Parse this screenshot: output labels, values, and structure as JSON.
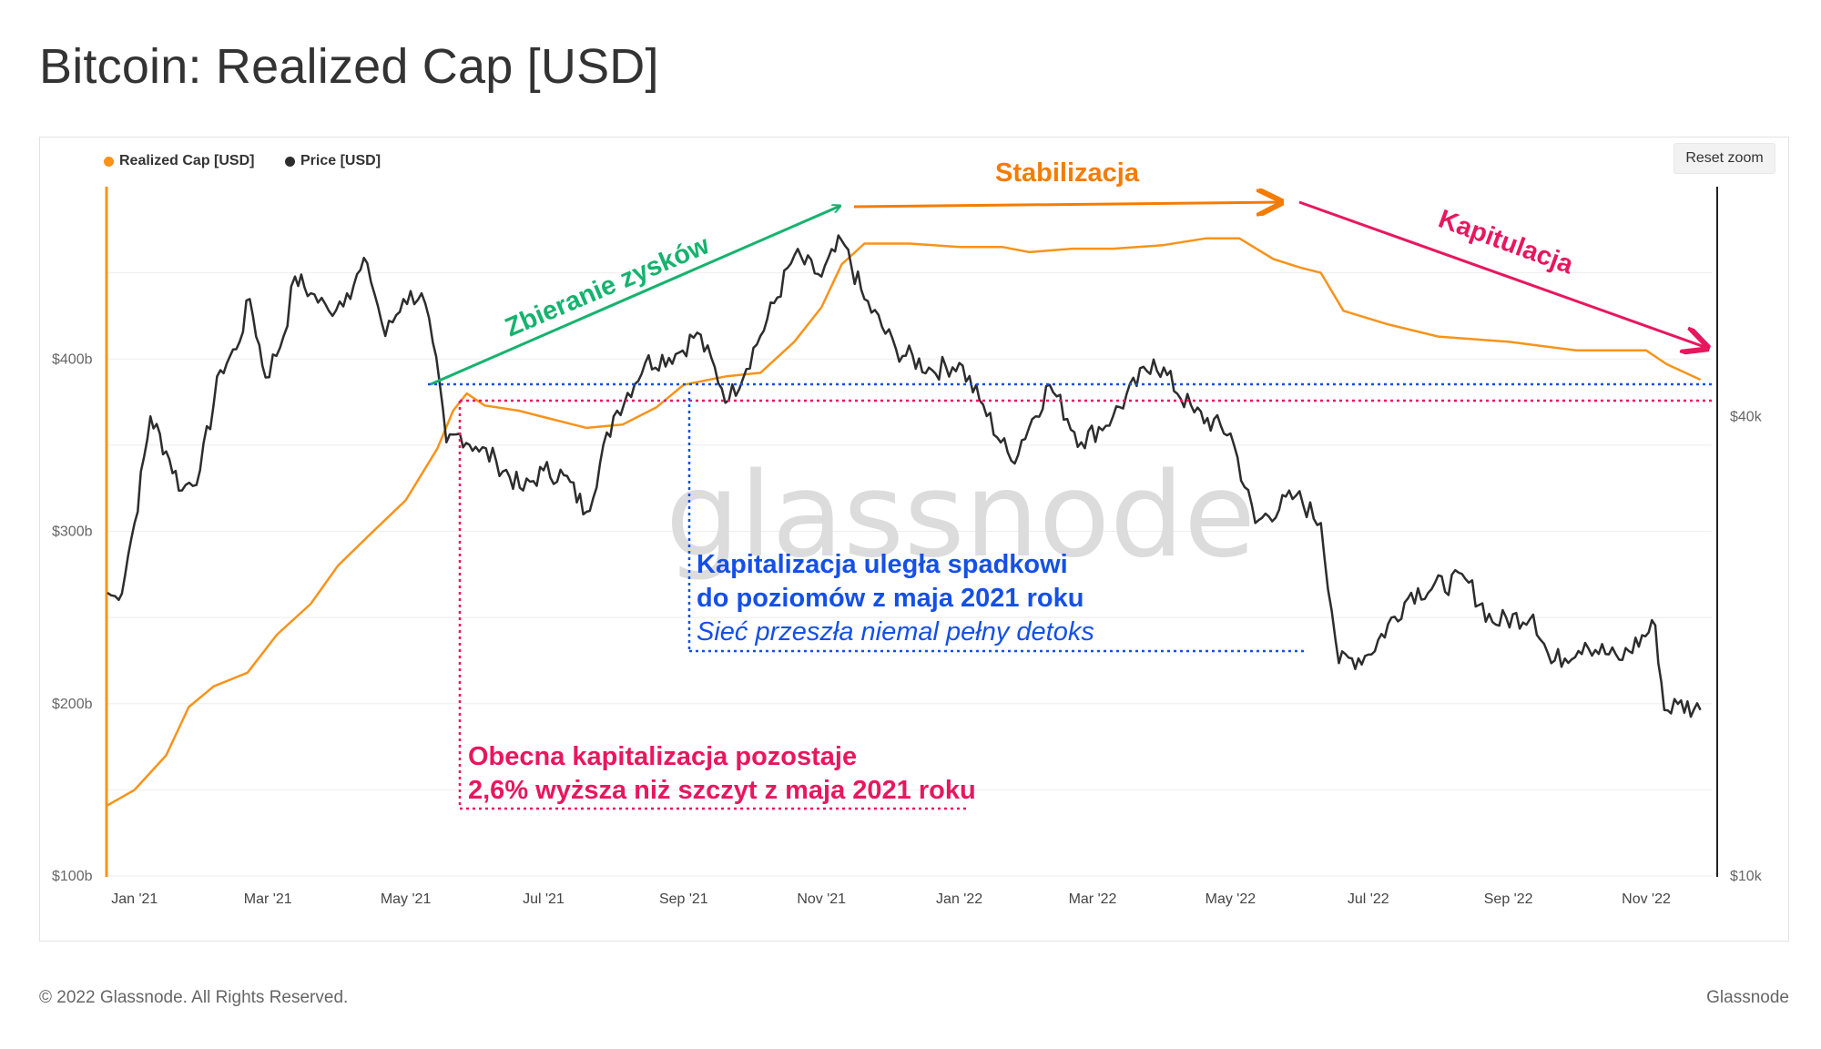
{
  "title": "Bitcoin: Realized Cap [USD]",
  "reset_zoom_label": "Reset zoom",
  "footer": {
    "copyright": "© 2022 Glassnode. All Rights Reserved.",
    "brand": "Glassnode"
  },
  "watermark": "glassnode",
  "colors": {
    "realized_cap": "#f7931a",
    "price": "#2d2d2d",
    "green": "#15b36e",
    "orange": "#f57c00",
    "pink": "#e8175d",
    "blue": "#1550e6"
  },
  "annotations": {
    "profit_taking": "Zbieranie zysków",
    "stabilization": "Stabilizacja",
    "capitulation": "Kapitulacja",
    "blue_line1": "Kapitalizacja uległa spadkowi",
    "blue_line2": "do poziomów z maja 2021 roku",
    "blue_line3": "Sieć przeszła niemal pełny detoks",
    "pink_line1": "Obecna kapitalizacja pozostaje",
    "pink_line2": "2,6% wyższa niż szczyt z maja 2021 roku"
  },
  "chart_data": {
    "type": "line",
    "legend": [
      "Realized Cap [USD]",
      "Price [USD]"
    ],
    "legend_position": "top-left",
    "x_ticks": [
      "Jan '21",
      "Mar '21",
      "May '21",
      "Jul '21",
      "Sep '21",
      "Nov '21",
      "Jan '22",
      "Mar '22",
      "May '22",
      "Jul '22",
      "Sep '22",
      "Nov '22"
    ],
    "y_left": {
      "ticks": [
        "$100b",
        "$200b",
        "$300b",
        "$400b"
      ],
      "range": [
        100,
        500
      ],
      "unit": "billion USD"
    },
    "y_right": {
      "ticks": [
        "$10k",
        "$40k"
      ],
      "scale": "log",
      "range": [
        10000,
        80000
      ]
    },
    "x_range": [
      "2020-12-20",
      "2022-11-30"
    ],
    "series": [
      {
        "name": "Realized Cap [USD]",
        "axis": "left",
        "points": [
          [
            "2020-12-20",
            141
          ],
          [
            "2021-01-01",
            150
          ],
          [
            "2021-01-15",
            170
          ],
          [
            "2021-01-25",
            198
          ],
          [
            "2021-02-05",
            210
          ],
          [
            "2021-02-20",
            218
          ],
          [
            "2021-03-05",
            240
          ],
          [
            "2021-03-20",
            258
          ],
          [
            "2021-04-01",
            280
          ],
          [
            "2021-04-15",
            298
          ],
          [
            "2021-05-01",
            318
          ],
          [
            "2021-05-15",
            348
          ],
          [
            "2021-05-22",
            370
          ],
          [
            "2021-05-28",
            380
          ],
          [
            "2021-06-05",
            373
          ],
          [
            "2021-06-20",
            370
          ],
          [
            "2021-07-05",
            365
          ],
          [
            "2021-07-20",
            360
          ],
          [
            "2021-08-05",
            362
          ],
          [
            "2021-08-20",
            372
          ],
          [
            "2021-09-01",
            385
          ],
          [
            "2021-09-20",
            390
          ],
          [
            "2021-10-05",
            392
          ],
          [
            "2021-10-20",
            410
          ],
          [
            "2021-11-01",
            430
          ],
          [
            "2021-11-10",
            455
          ],
          [
            "2021-11-20",
            467
          ],
          [
            "2021-12-10",
            467
          ],
          [
            "2022-01-01",
            465
          ],
          [
            "2022-01-20",
            465
          ],
          [
            "2022-02-01",
            462
          ],
          [
            "2022-02-20",
            464
          ],
          [
            "2022-03-10",
            464
          ],
          [
            "2022-04-01",
            466
          ],
          [
            "2022-04-20",
            470
          ],
          [
            "2022-05-05",
            470
          ],
          [
            "2022-05-20",
            458
          ],
          [
            "2022-06-01",
            453
          ],
          [
            "2022-06-10",
            450
          ],
          [
            "2022-06-20",
            428
          ],
          [
            "2022-07-10",
            420
          ],
          [
            "2022-08-01",
            413
          ],
          [
            "2022-09-01",
            410
          ],
          [
            "2022-10-01",
            405
          ],
          [
            "2022-11-01",
            405
          ],
          [
            "2022-11-10",
            397
          ],
          [
            "2022-11-25",
            388
          ]
        ]
      },
      {
        "name": "Price [USD]",
        "axis": "right",
        "points": [
          [
            "2020-12-20",
            23500
          ],
          [
            "2020-12-25",
            23000
          ],
          [
            "2021-01-01",
            29000
          ],
          [
            "2021-01-08",
            40000
          ],
          [
            "2021-01-15",
            36000
          ],
          [
            "2021-01-22",
            32000
          ],
          [
            "2021-01-30",
            34000
          ],
          [
            "2021-02-08",
            46000
          ],
          [
            "2021-02-15",
            49000
          ],
          [
            "2021-02-21",
            57000
          ],
          [
            "2021-02-28",
            45000
          ],
          [
            "2021-03-08",
            51000
          ],
          [
            "2021-03-13",
            61000
          ],
          [
            "2021-03-20",
            58000
          ],
          [
            "2021-03-28",
            55000
          ],
          [
            "2021-04-05",
            58000
          ],
          [
            "2021-04-14",
            63500
          ],
          [
            "2021-04-22",
            51000
          ],
          [
            "2021-04-30",
            57000
          ],
          [
            "2021-05-08",
            58000
          ],
          [
            "2021-05-13",
            50000
          ],
          [
            "2021-05-19",
            37000
          ],
          [
            "2021-05-25",
            38000
          ],
          [
            "2021-06-01",
            36500
          ],
          [
            "2021-06-10",
            35000
          ],
          [
            "2021-06-22",
            32000
          ],
          [
            "2021-07-01",
            34000
          ],
          [
            "2021-07-10",
            33500
          ],
          [
            "2021-07-20",
            30000
          ],
          [
            "2021-08-01",
            40000
          ],
          [
            "2021-08-15",
            47000
          ],
          [
            "2021-08-30",
            48500
          ],
          [
            "2021-09-07",
            51500
          ],
          [
            "2021-09-21",
            42000
          ],
          [
            "2021-10-05",
            51000
          ],
          [
            "2021-10-20",
            65000
          ],
          [
            "2021-11-01",
            61000
          ],
          [
            "2021-11-10",
            68000
          ],
          [
            "2021-11-20",
            57000
          ],
          [
            "2021-12-04",
            49000
          ],
          [
            "2021-12-20",
            46000
          ],
          [
            "2022-01-01",
            47000
          ],
          [
            "2022-01-10",
            42000
          ],
          [
            "2022-01-24",
            35000
          ],
          [
            "2022-02-10",
            44000
          ],
          [
            "2022-02-24",
            37000
          ],
          [
            "2022-03-10",
            40000
          ],
          [
            "2022-03-28",
            47500
          ],
          [
            "2022-04-15",
            40500
          ],
          [
            "2022-05-01",
            38000
          ],
          [
            "2022-05-12",
            29000
          ],
          [
            "2022-05-30",
            31500
          ],
          [
            "2022-06-10",
            29000
          ],
          [
            "2022-06-18",
            19000
          ],
          [
            "2022-07-01",
            19500
          ],
          [
            "2022-07-20",
            23500
          ],
          [
            "2022-08-13",
            24500
          ],
          [
            "2022-08-25",
            21500
          ],
          [
            "2022-09-12",
            22000
          ],
          [
            "2022-09-20",
            19000
          ],
          [
            "2022-10-05",
            20200
          ],
          [
            "2022-10-20",
            19200
          ],
          [
            "2022-11-05",
            21300
          ],
          [
            "2022-11-09",
            16500
          ],
          [
            "2022-11-15",
            16800
          ],
          [
            "2022-11-25",
            16500
          ]
        ]
      }
    ]
  }
}
